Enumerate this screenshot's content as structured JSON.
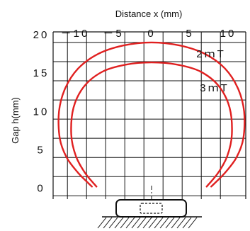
{
  "chart_data": {
    "type": "line",
    "title": "",
    "xlabel": "Distance x (mm)",
    "ylabel": "Gap h(mm)",
    "xlim": [
      -13,
      13
    ],
    "ylim": [
      0,
      20
    ],
    "grid": true,
    "x_tick_values": [
      -10,
      -5,
      0,
      5,
      10
    ],
    "x_tick_labels": [
      "－10",
      "－5",
      "0",
      "5",
      "10"
    ],
    "y_tick_values": [
      0,
      5,
      10,
      15,
      20
    ],
    "y_tick_labels": [
      "0",
      "5",
      "10",
      "15",
      "20"
    ],
    "series": [
      {
        "name": "2mT",
        "label": "2ｍT",
        "color": "#e02020",
        "x": [
          -7.8,
          -9.6,
          -11.1,
          -12.0,
          -12.1,
          -11.3,
          -9.6,
          -7.0,
          -3.7,
          0.0,
          3.7,
          7.0,
          9.6,
          11.3,
          12.1,
          12.0,
          11.1,
          9.6,
          7.8
        ],
        "y": [
          0.2,
          2.0,
          4.0,
          6.5,
          10.0,
          13.0,
          15.6,
          17.5,
          18.6,
          19.0,
          18.6,
          17.5,
          15.6,
          13.0,
          10.0,
          6.5,
          4.0,
          2.0,
          0.2
        ]
      },
      {
        "name": "3mT",
        "label": "3ｍT",
        "color": "#e02020",
        "x": [
          -7.2,
          -8.7,
          -9.9,
          -10.5,
          -10.2,
          -8.8,
          -6.4,
          -3.4,
          0.0,
          3.4,
          6.4,
          8.8,
          10.2,
          10.5,
          9.9,
          8.7,
          7.2
        ],
        "y": [
          0.2,
          2.0,
          4.2,
          7.0,
          10.5,
          13.3,
          15.2,
          16.1,
          16.4,
          16.1,
          15.2,
          13.3,
          10.5,
          7.0,
          4.2,
          2.0,
          0.2
        ]
      }
    ]
  }
}
